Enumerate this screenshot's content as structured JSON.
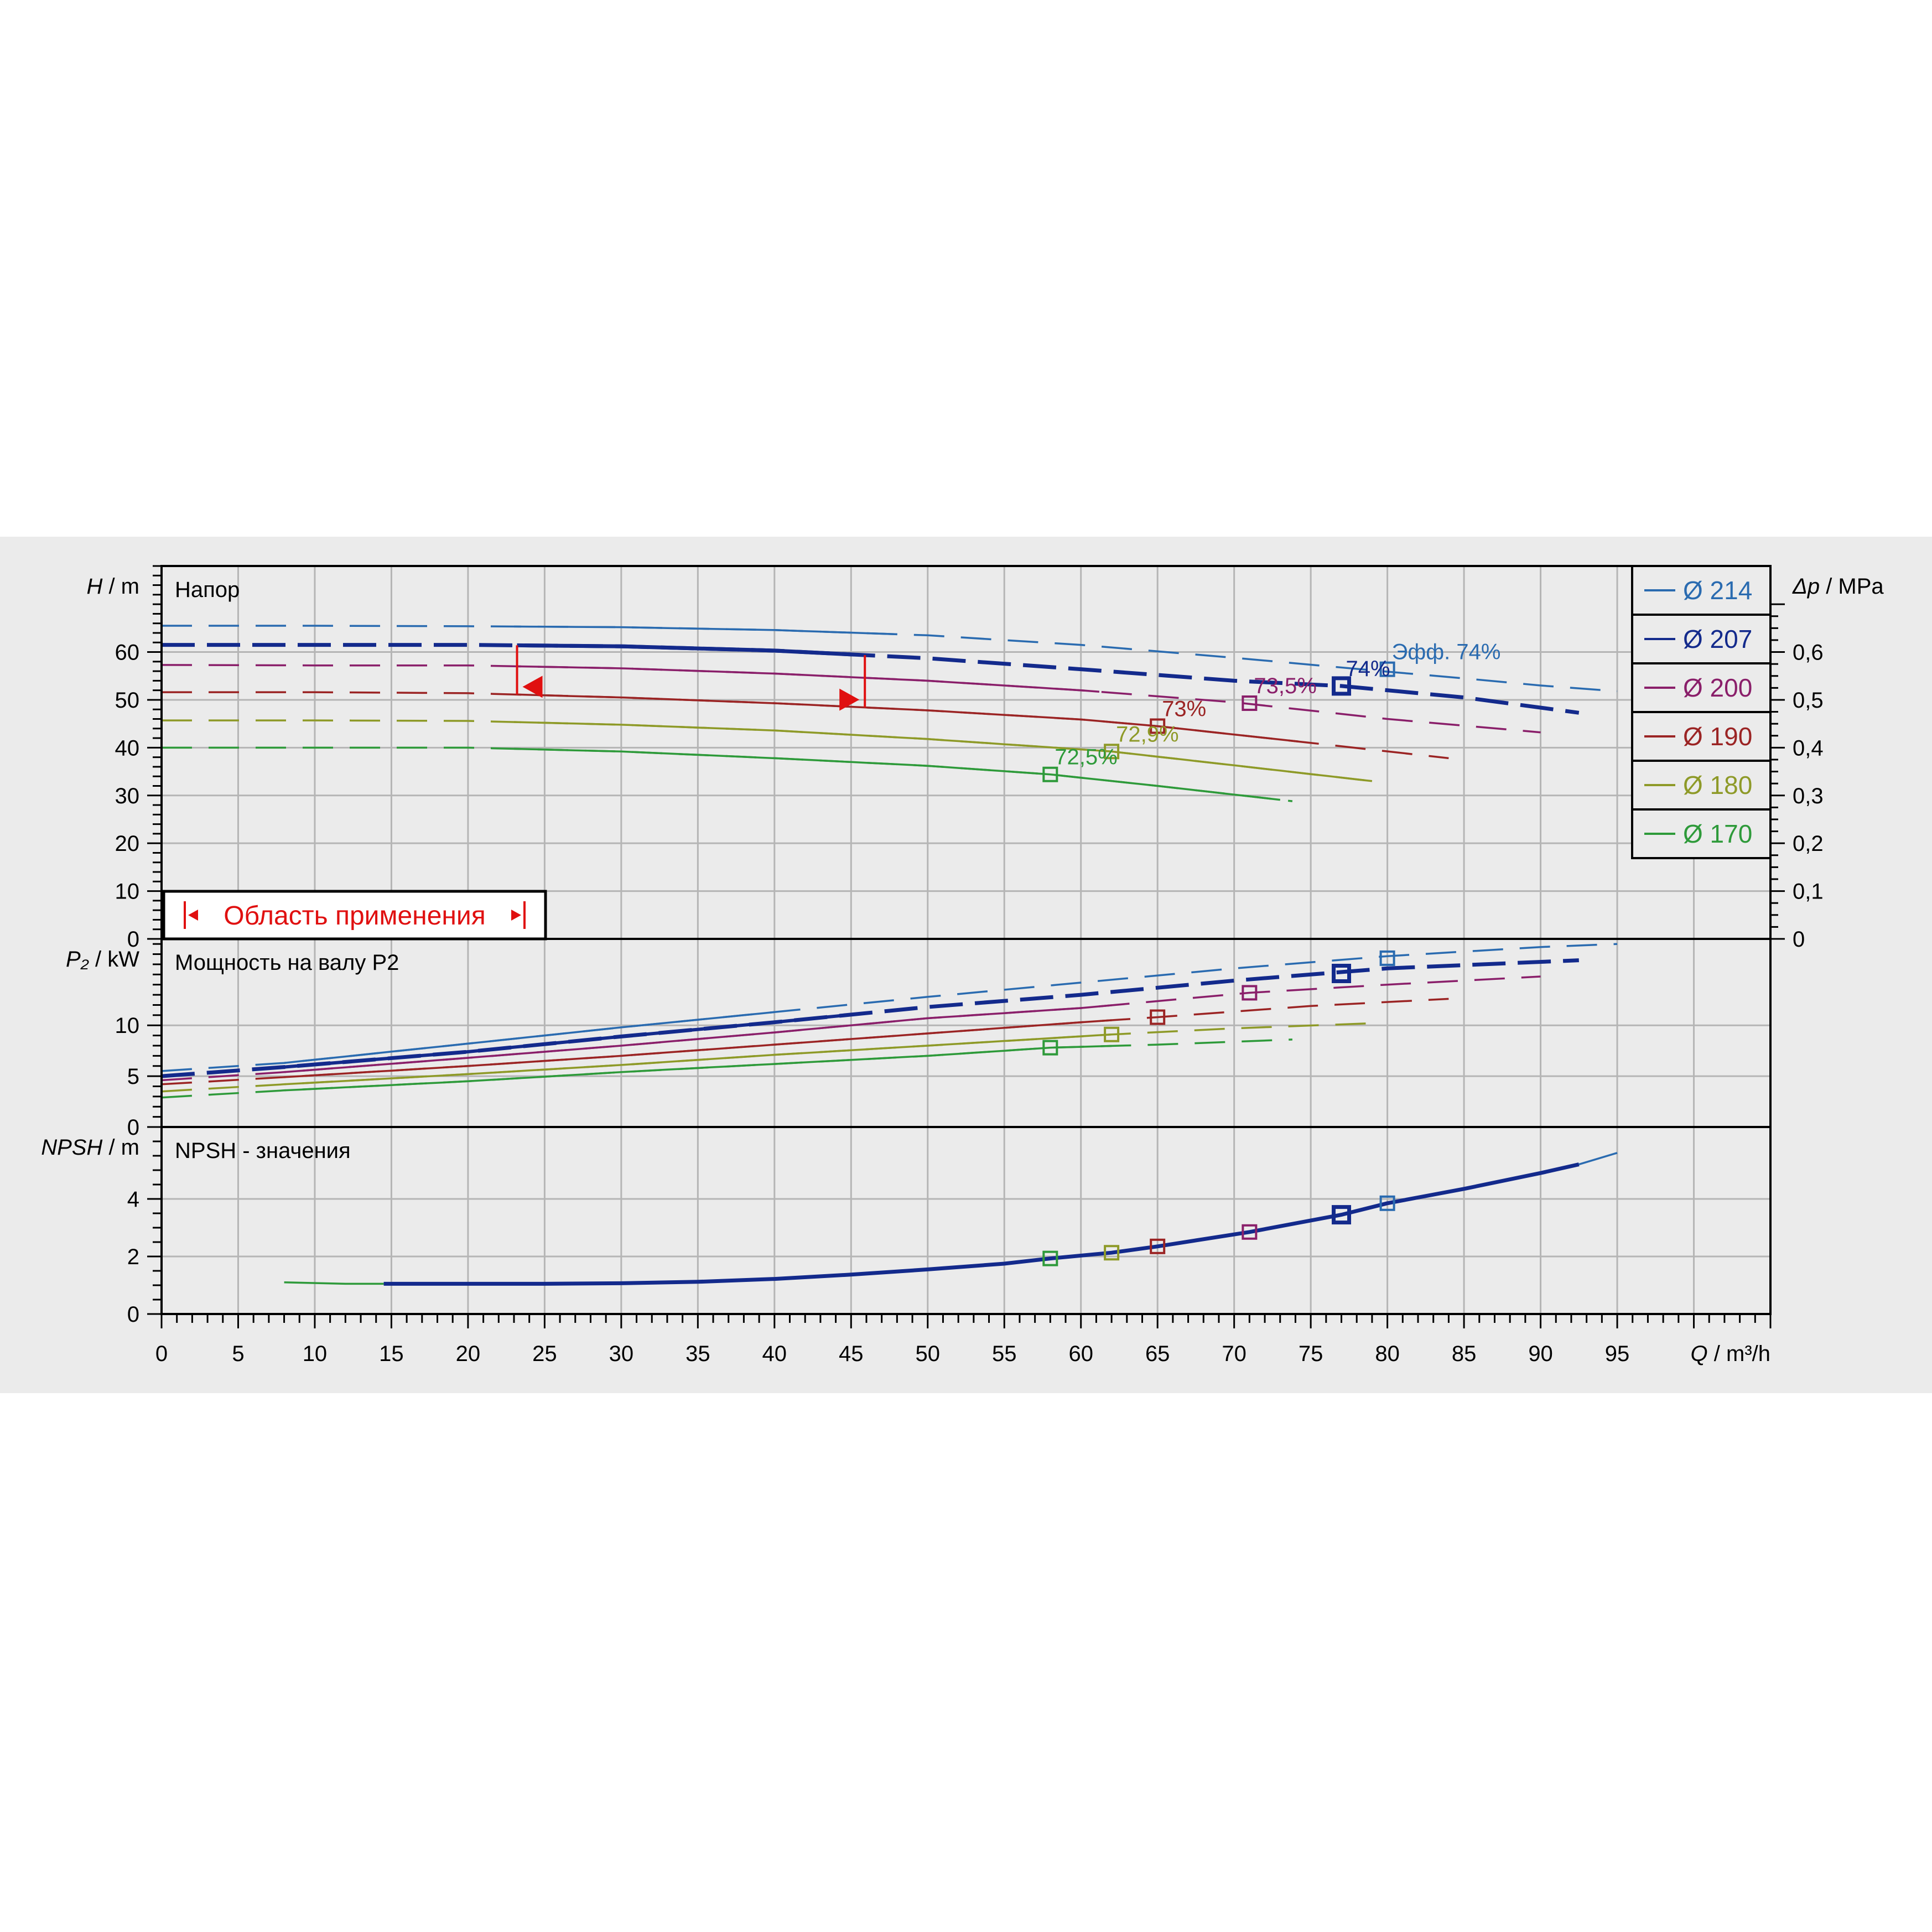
{
  "chart_data": {
    "type": "line",
    "x_label_italic": "Q",
    "x_label_unit": "/ m³/h",
    "x_ticks": [
      0,
      5,
      10,
      15,
      20,
      25,
      30,
      35,
      40,
      45,
      50,
      55,
      60,
      65,
      70,
      75,
      80,
      85,
      90,
      95
    ],
    "xlim": [
      0,
      105
    ],
    "grid": true,
    "legend": {
      "placement": "top-right",
      "entries": [
        {
          "label": "Ø 214",
          "color": "#2a6bb0"
        },
        {
          "label": "Ø 207",
          "color": "#132a8c"
        },
        {
          "label": "Ø 200",
          "color": "#8a1f6a"
        },
        {
          "label": "Ø 190",
          "color": "#9b2424"
        },
        {
          "label": "Ø 180",
          "color": "#8e9a28"
        },
        {
          "label": "Ø 170",
          "color": "#2e9a3a"
        }
      ]
    },
    "head_panel": {
      "title": "Напор",
      "ylabel_italic": "H",
      "ylabel_unit": "/ m",
      "y_ticks": [
        0,
        10,
        20,
        30,
        40,
        50,
        60
      ],
      "ylim": [
        0,
        78
      ],
      "right_axis": {
        "label_italic": "Δp",
        "label_unit": "/ MPa",
        "ticks": [
          "0",
          "0,1",
          "0,2",
          "0,3",
          "0,4",
          "0,5",
          "0,6"
        ]
      },
      "operating_range": {
        "label": "Область применения",
        "q_min": 23.2,
        "q_max": 45.9
      },
      "series": [
        {
          "name": "Ø 214",
          "color": "#2a6bb0",
          "q": [
            0,
            10,
            20,
            30,
            40,
            50,
            60,
            70,
            80,
            85,
            90,
            95
          ],
          "h": [
            65.5,
            65.5,
            65.4,
            65.2,
            64.6,
            63.5,
            61.5,
            58.8,
            55.9,
            54.5,
            53.0,
            51.8
          ]
        },
        {
          "name": "Ø 207",
          "color": "#132a8c",
          "q": [
            0,
            10,
            20,
            30,
            40,
            50,
            60,
            70,
            77,
            85,
            92.5
          ],
          "h": [
            61.5,
            61.5,
            61.5,
            61.2,
            60.3,
            58.7,
            56.4,
            54.0,
            52.9,
            50.5,
            47.3
          ]
        },
        {
          "name": "Ø 200",
          "color": "#8a1f6a",
          "q": [
            0,
            10,
            20,
            30,
            40,
            50,
            60,
            70,
            80,
            90
          ],
          "h": [
            57.3,
            57.2,
            57.2,
            56.6,
            55.5,
            54.0,
            52.0,
            49.5,
            46.0,
            43.2
          ]
        },
        {
          "name": "Ø 190",
          "color": "#9b2424",
          "q": [
            0,
            10,
            20,
            30,
            40,
            50,
            60,
            65,
            75,
            84
          ],
          "h": [
            51.6,
            51.6,
            51.4,
            50.5,
            49.3,
            47.8,
            45.9,
            44.5,
            41.0,
            37.8
          ]
        },
        {
          "name": "Ø 180",
          "color": "#8e9a28",
          "q": [
            0,
            10,
            20,
            30,
            40,
            50,
            62,
            70,
            79
          ],
          "h": [
            45.7,
            45.7,
            45.6,
            44.8,
            43.6,
            41.8,
            39.2,
            36.3,
            33.0
          ]
        },
        {
          "name": "Ø 170",
          "color": "#2e9a3a",
          "q": [
            0,
            10,
            20,
            30,
            40,
            50,
            58,
            65,
            73.8
          ],
          "h": [
            40.0,
            40.0,
            40.0,
            39.2,
            37.8,
            36.2,
            34.4,
            32.0,
            28.8
          ]
        }
      ],
      "efficiency_points": [
        {
          "label": "72,5%",
          "q": 58,
          "h": 34.4,
          "color": "#2e9a3a"
        },
        {
          "label": "72,9%",
          "q": 62,
          "h": 39.2,
          "color": "#8e9a28"
        },
        {
          "label": "73%",
          "q": 65,
          "h": 44.5,
          "color": "#9b2424"
        },
        {
          "label": "73,5%",
          "q": 71,
          "h": 49.3,
          "color": "#8a1f6a"
        },
        {
          "label": "74%",
          "q": 77,
          "h": 52.9,
          "color": "#132a8c"
        },
        {
          "label": "Эфф.  74%",
          "q": 80,
          "h": 56.4,
          "color": "#2a6bb0"
        }
      ]
    },
    "power_panel": {
      "title": "Мощность на валу P2",
      "ylabel_italic": "P₂",
      "ylabel_unit": "/ kW",
      "y_ticks": [
        0,
        5,
        10
      ],
      "ylim": [
        0,
        18.5
      ],
      "series": [
        {
          "name": "Ø 214",
          "color": "#2a6bb0",
          "q": [
            0,
            8,
            20,
            30,
            40,
            50,
            60,
            70,
            80,
            90,
            95
          ],
          "p": [
            5.5,
            6.3,
            8.2,
            9.8,
            11.3,
            12.8,
            14.2,
            15.6,
            16.8,
            17.7,
            18.0
          ]
        },
        {
          "name": "Ø 207",
          "color": "#132a8c",
          "q": [
            0,
            8,
            20,
            30,
            40,
            50,
            60,
            70,
            80,
            92.5
          ],
          "p": [
            5.0,
            5.9,
            7.4,
            8.9,
            10.3,
            11.8,
            13.0,
            14.4,
            15.6,
            16.4
          ]
        },
        {
          "name": "Ø 200",
          "color": "#8a1f6a",
          "q": [
            0,
            8,
            20,
            30,
            40,
            50,
            60,
            71,
            80,
            90
          ],
          "p": [
            4.6,
            5.4,
            6.8,
            8.0,
            9.3,
            10.7,
            11.7,
            13.2,
            14.0,
            14.8
          ]
        },
        {
          "name": "Ø 190",
          "color": "#9b2424",
          "q": [
            0,
            8,
            20,
            30,
            40,
            50,
            60,
            65,
            75,
            84
          ],
          "p": [
            4.2,
            4.9,
            6.0,
            7.0,
            8.1,
            9.2,
            10.3,
            10.8,
            11.9,
            12.6
          ]
        },
        {
          "name": "Ø 180",
          "color": "#8e9a28",
          "q": [
            0,
            8,
            20,
            30,
            40,
            50,
            62,
            70,
            79
          ],
          "p": [
            3.5,
            4.2,
            5.2,
            6.1,
            7.1,
            8.0,
            9.1,
            9.7,
            10.2
          ]
        },
        {
          "name": "Ø 170",
          "color": "#2e9a3a",
          "q": [
            0,
            8,
            20,
            30,
            40,
            50,
            58,
            65,
            73.8
          ],
          "p": [
            2.9,
            3.6,
            4.5,
            5.4,
            6.2,
            7.0,
            7.8,
            8.1,
            8.6
          ]
        }
      ],
      "points": [
        {
          "q": 58,
          "p": 7.8,
          "color": "#2e9a3a"
        },
        {
          "q": 62,
          "p": 9.1,
          "color": "#8e9a28"
        },
        {
          "q": 65,
          "p": 10.8,
          "color": "#9b2424"
        },
        {
          "q": 71,
          "p": 13.2,
          "color": "#8a1f6a"
        },
        {
          "q": 77,
          "p": 15.1,
          "color": "#132a8c"
        },
        {
          "q": 80,
          "p": 16.6,
          "color": "#2a6bb0"
        }
      ]
    },
    "npsh_panel": {
      "title": "NPSH - значения",
      "ylabel_italic": "NPSH",
      "ylabel_unit": "/ m",
      "y_ticks": [
        0,
        2,
        4
      ],
      "ylim": [
        0,
        6.5
      ],
      "series": [
        {
          "name": "Ø 170",
          "color": "#2e9a3a",
          "q": [
            8,
            12,
            14.5
          ],
          "n": [
            1.1,
            1.05,
            1.05
          ]
        },
        {
          "name": "Ø 207",
          "color": "#132a8c",
          "q": [
            14.5,
            20,
            25,
            30,
            35,
            40,
            45,
            50,
            55,
            58,
            62,
            65,
            71,
            77,
            80,
            85,
            90,
            92.5
          ],
          "n": [
            1.05,
            1.05,
            1.05,
            1.07,
            1.12,
            1.22,
            1.37,
            1.55,
            1.75,
            1.93,
            2.13,
            2.35,
            2.85,
            3.45,
            3.85,
            4.35,
            4.9,
            5.2
          ]
        },
        {
          "name": "Ø 214",
          "color": "#2a6bb0",
          "q": [
            92.5,
            95
          ],
          "n": [
            5.2,
            5.6
          ]
        }
      ],
      "points": [
        {
          "q": 58,
          "n": 1.93,
          "color": "#2e9a3a"
        },
        {
          "q": 62,
          "n": 2.13,
          "color": "#8e9a28"
        },
        {
          "q": 65,
          "n": 2.35,
          "color": "#9b2424"
        },
        {
          "q": 71,
          "n": 2.85,
          "color": "#8a1f6a"
        },
        {
          "q": 77,
          "n": 3.45,
          "color": "#132a8c"
        },
        {
          "q": 80,
          "n": 3.85,
          "color": "#2a6bb0"
        }
      ]
    }
  }
}
